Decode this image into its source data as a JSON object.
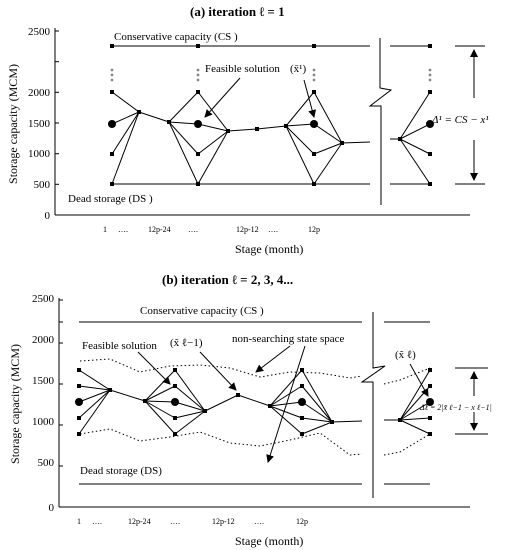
{
  "panel_a": {
    "title": "(a) iteration  ℓ = 1",
    "ylabel": "Storage capacity (MCM)",
    "xlabel": "Stage (month)",
    "yticks": [
      "0",
      "500",
      "1000",
      "1500",
      "2000",
      "2500"
    ],
    "xticks": [
      "1",
      "….",
      "12p-24",
      "….",
      "12p-12",
      "….",
      "12p"
    ],
    "cs_label": "Conservative capacity (CS )",
    "ds_label": "Dead storage (DS )",
    "feasible_label": "Feasible solution",
    "xbar_label": "(x̄¹)",
    "delta_label": "Δ¹ = CS − x¹"
  },
  "panel_b": {
    "title": "(b) iteration  ℓ   = 2, 3, 4...",
    "ylabel": "Storage capacity (MCM)",
    "xlabel": "Stage (month)",
    "yticks": [
      "0",
      "500",
      "1000",
      "1500",
      "2000",
      "2500"
    ],
    "xticks": [
      "1",
      "….",
      "12p-24",
      "….",
      "12p-12",
      "….",
      "12p"
    ],
    "cs_label": "Conservative capacity (CS )",
    "ds_label": "Dead storage (DS)",
    "feasible_label": "Feasible solution",
    "xbar_label": "(x̃ ℓ−1)",
    "nonsearch_label": "non-searching state space",
    "xbar_right_label": "(x̃ ℓ)",
    "delta_label": "Δℓ = 2|x̃ ℓ−1 − x ℓ−1|"
  }
}
